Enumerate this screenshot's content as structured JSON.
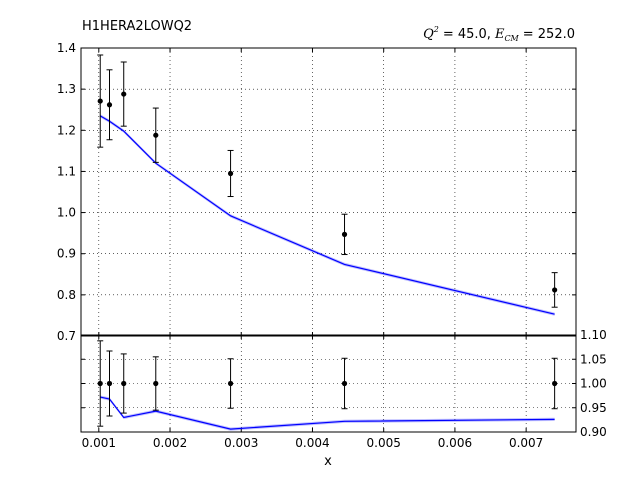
{
  "chart_data": [
    {
      "type": "scatter",
      "title": "H1HERA2LOWQ2",
      "annotation": {
        "q2_symbol": "Q",
        "q2_sup": "2",
        "q2_value": "= 45.0,",
        "ecm_symbol": "E",
        "ecm_sub": "CM",
        "ecm_value": "= 252.0"
      },
      "xlim": [
        0.00075,
        0.0077
      ],
      "ylim": [
        0.7,
        1.4
      ],
      "yticks": [
        "0.7",
        "0.8",
        "0.9",
        "1.0",
        "1.1",
        "1.2",
        "1.3",
        "1.4"
      ],
      "grid": true,
      "series": [
        {
          "kind": "data-points",
          "x": [
            0.00102,
            0.00115,
            0.00135,
            0.0018,
            0.00285,
            0.00445,
            0.0074
          ],
          "y": [
            1.271,
            1.262,
            1.288,
            1.188,
            1.095,
            0.947,
            0.812
          ],
          "yerr": [
            0.112,
            0.085,
            0.078,
            0.066,
            0.056,
            0.049,
            0.042
          ],
          "color": "#000000"
        },
        {
          "kind": "theory-band",
          "x": [
            0.00102,
            0.00115,
            0.00135,
            0.0018,
            0.00285,
            0.00445,
            0.0074
          ],
          "y": [
            1.235,
            1.222,
            1.198,
            1.12,
            0.992,
            0.874,
            0.753
          ],
          "color": "#0000ff"
        }
      ]
    },
    {
      "type": "scatter",
      "xlabel": "x",
      "xlim": [
        0.00075,
        0.0077
      ],
      "ylim": [
        0.9,
        1.1
      ],
      "xticks": [
        "0.001",
        "0.002",
        "0.003",
        "0.004",
        "0.005",
        "0.006",
        "0.007"
      ],
      "yticks": [
        "0.90",
        "0.95",
        "1.00",
        "1.05",
        "1.10"
      ],
      "grid": true,
      "series": [
        {
          "kind": "ratio-points",
          "x": [
            0.00102,
            0.00115,
            0.00135,
            0.0018,
            0.00285,
            0.00445,
            0.0074
          ],
          "y": [
            1.0,
            1.0,
            1.0,
            1.0,
            1.0,
            1.0,
            1.0
          ],
          "yerr": [
            0.088,
            0.067,
            0.061,
            0.055,
            0.051,
            0.052,
            0.052
          ],
          "color": "#000000"
        },
        {
          "kind": "ratio-band",
          "x": [
            0.00102,
            0.00115,
            0.00135,
            0.0018,
            0.00285,
            0.00445,
            0.0074
          ],
          "y": [
            0.972,
            0.968,
            0.93,
            0.943,
            0.906,
            0.922,
            0.926
          ],
          "color": "#0000ff"
        }
      ]
    }
  ]
}
